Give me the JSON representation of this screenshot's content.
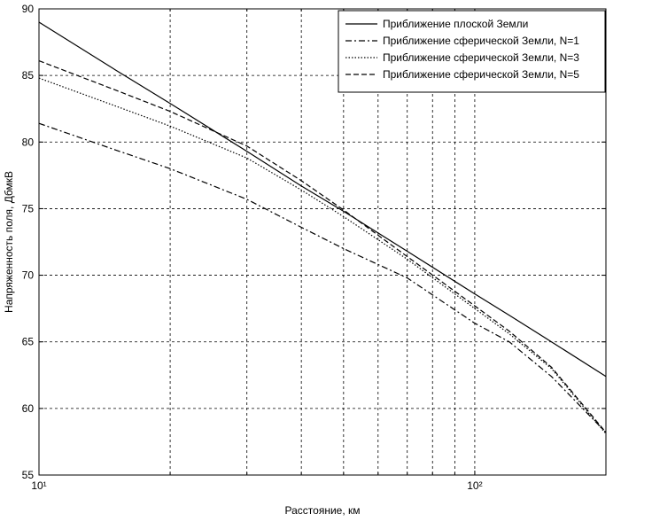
{
  "chart_data": {
    "type": "line",
    "xlabel": "Расстояние, км",
    "ylabel": "Напряженность поля, ДбмкВ",
    "xscale": "log",
    "xlim": [
      10,
      200
    ],
    "xticks": [
      {
        "value": 10,
        "label": "10¹"
      },
      {
        "value": 100,
        "label": "10²"
      }
    ],
    "xgrid_minor": [
      20,
      30,
      40,
      50,
      60,
      70,
      80,
      90
    ],
    "ylim": [
      55,
      90
    ],
    "yticks": [
      55,
      60,
      65,
      70,
      75,
      80,
      85,
      90
    ],
    "grid": true,
    "legend": "upper right",
    "x": [
      10,
      15,
      20,
      30,
      40,
      50,
      70,
      100,
      120,
      150,
      200
    ],
    "series": [
      {
        "name": "Приближение плоской Земли",
        "color": "#000000",
        "linestyle": "solid",
        "values": [
          89.0,
          85.4,
          82.9,
          79.3,
          76.7,
          74.8,
          71.8,
          68.6,
          67.0,
          65.0,
          62.4
        ]
      },
      {
        "name": "Приближение сферической Земли, N=1",
        "color": "#000000",
        "linestyle": "dashdot",
        "values": [
          81.4,
          79.4,
          78.0,
          75.7,
          73.6,
          72.0,
          69.8,
          66.4,
          65.0,
          62.4,
          58.2
        ]
      },
      {
        "name": "Приближение сферической Земли, N=3",
        "color": "#000000",
        "linestyle": "dotted",
        "values": [
          84.8,
          82.7,
          81.2,
          78.8,
          76.4,
          74.4,
          71.2,
          67.5,
          65.6,
          63.0,
          58.1
        ]
      },
      {
        "name": "Приближение сферической Земли, N=5",
        "color": "#000000",
        "linestyle": "dashed",
        "values": [
          86.1,
          83.9,
          82.3,
          79.7,
          77.1,
          74.9,
          71.4,
          67.7,
          65.8,
          63.1,
          58.2
        ]
      }
    ]
  }
}
